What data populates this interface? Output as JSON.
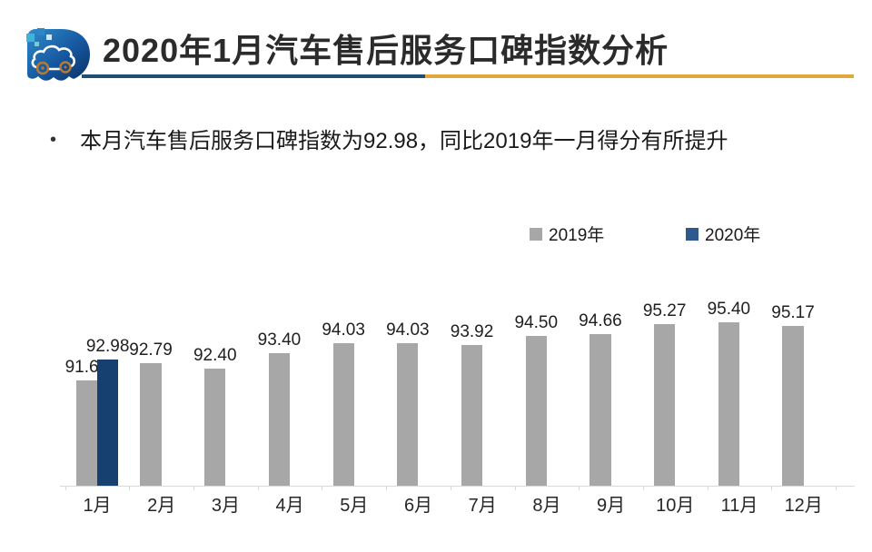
{
  "header": {
    "title": "2020年1月汽车售后服务口碑指数分析",
    "logo_icon": "car-cloud-logo",
    "underline_colors": {
      "left": "#20506f",
      "right": "#dfa93c"
    }
  },
  "bullet": {
    "marker": "•",
    "text": "本月汽车售后服务口碑指数为92.98，同比2019年一月得分有所提升"
  },
  "legend": [
    {
      "label": "2019年",
      "color": "#a7a7a7"
    },
    {
      "label": "2020年",
      "color": "#2d5a8c"
    }
  ],
  "chart_data": {
    "type": "bar",
    "title": "",
    "categories": [
      "1月",
      "2月",
      "3月",
      "4月",
      "5月",
      "6月",
      "7月",
      "8月",
      "9月",
      "10月",
      "11月",
      "12月"
    ],
    "series": [
      {
        "name": "2019年",
        "color": "#a7a7a7",
        "values": [
          91.64,
          92.79,
          92.4,
          93.4,
          94.03,
          94.03,
          93.92,
          94.5,
          94.66,
          95.27,
          95.4,
          95.17
        ]
      },
      {
        "name": "2020年",
        "color": "#16406f",
        "values": [
          92.98,
          null,
          null,
          null,
          null,
          null,
          null,
          null,
          null,
          null,
          null,
          null
        ]
      }
    ],
    "data_labels": true,
    "xlabel": "",
    "ylabel": "",
    "ylim": [
      84.87,
      96
    ],
    "y_axis_visible": false,
    "gridlines": false,
    "legend_position": "top-right",
    "axis_color": "#d9d9d9",
    "label_color": "#1f1f1f"
  }
}
